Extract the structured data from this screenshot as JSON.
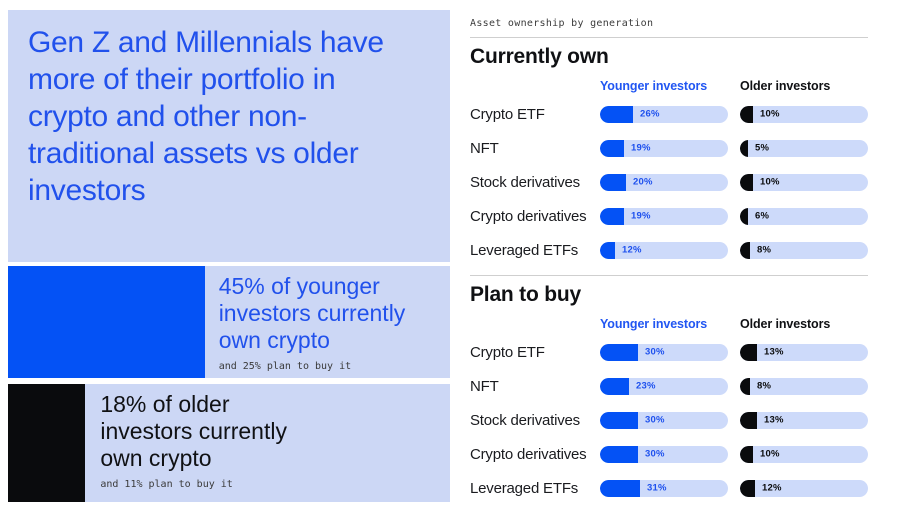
{
  "colors": {
    "accent_blue": "#0452f5",
    "text_blue": "#2151ec",
    "panel_light_blue": "#ccd7f5",
    "track_light_blue": "#cddafa",
    "black": "#0a0b0d"
  },
  "left": {
    "headline": "Gen Z and Millennials have more of their portfolio in crypto and other non-traditional assets vs older investors",
    "younger_callout": {
      "main": "45% of younger investors currently own crypto",
      "sub": "and 25% plan to buy it",
      "bar_pct": 45
    },
    "older_callout": {
      "main": "18% of older investors currently own crypto",
      "sub": "and 11% plan to buy it",
      "bar_pct": 18
    }
  },
  "right": {
    "eyebrow": "Asset ownership by generation",
    "col_younger": "Younger investors",
    "col_older": "Older investors",
    "sections": [
      {
        "title": "Currently own",
        "rows": [
          {
            "label": "Crypto ETF",
            "younger": 26,
            "older": 10
          },
          {
            "label": "NFT",
            "younger": 19,
            "older": 5
          },
          {
            "label": "Stock derivatives",
            "younger": 20,
            "older": 10
          },
          {
            "label": "Crypto derivatives",
            "younger": 19,
            "older": 6
          },
          {
            "label": "Leveraged ETFs",
            "younger": 12,
            "older": 8
          }
        ]
      },
      {
        "title": "Plan to buy",
        "rows": [
          {
            "label": "Crypto ETF",
            "younger": 30,
            "older": 13
          },
          {
            "label": "NFT",
            "younger": 23,
            "older": 8
          },
          {
            "label": "Stock derivatives",
            "younger": 30,
            "older": 13
          },
          {
            "label": "Crypto derivatives",
            "younger": 30,
            "older": 10
          },
          {
            "label": "Leveraged ETFs",
            "younger": 31,
            "older": 12
          }
        ]
      }
    ]
  },
  "chart_data": [
    {
      "type": "bar",
      "title": "Currently own",
      "categories": [
        "Crypto ETF",
        "NFT",
        "Stock derivatives",
        "Crypto derivatives",
        "Leveraged ETFs"
      ],
      "series": [
        {
          "name": "Younger investors",
          "values": [
            26,
            19,
            20,
            19,
            12
          ]
        },
        {
          "name": "Older investors",
          "values": [
            10,
            5,
            10,
            6,
            8
          ]
        }
      ],
      "unit": "%",
      "xlim": [
        0,
        100
      ],
      "orientation": "horizontal",
      "legend_position": "top"
    },
    {
      "type": "bar",
      "title": "Plan to buy",
      "categories": [
        "Crypto ETF",
        "NFT",
        "Stock derivatives",
        "Crypto derivatives",
        "Leveraged ETFs"
      ],
      "series": [
        {
          "name": "Younger investors",
          "values": [
            30,
            23,
            30,
            30,
            31
          ]
        },
        {
          "name": "Older investors",
          "values": [
            13,
            8,
            13,
            10,
            12
          ]
        }
      ],
      "unit": "%",
      "xlim": [
        0,
        100
      ],
      "orientation": "horizontal",
      "legend_position": "top"
    },
    {
      "type": "bar",
      "title": "Crypto ownership callouts",
      "categories": [
        "Younger investors currently own crypto",
        "Older investors currently own crypto"
      ],
      "values": [
        45,
        18
      ],
      "annotations": [
        "and 25% plan to buy it",
        "and 11% plan to buy it"
      ],
      "unit": "%"
    }
  ]
}
